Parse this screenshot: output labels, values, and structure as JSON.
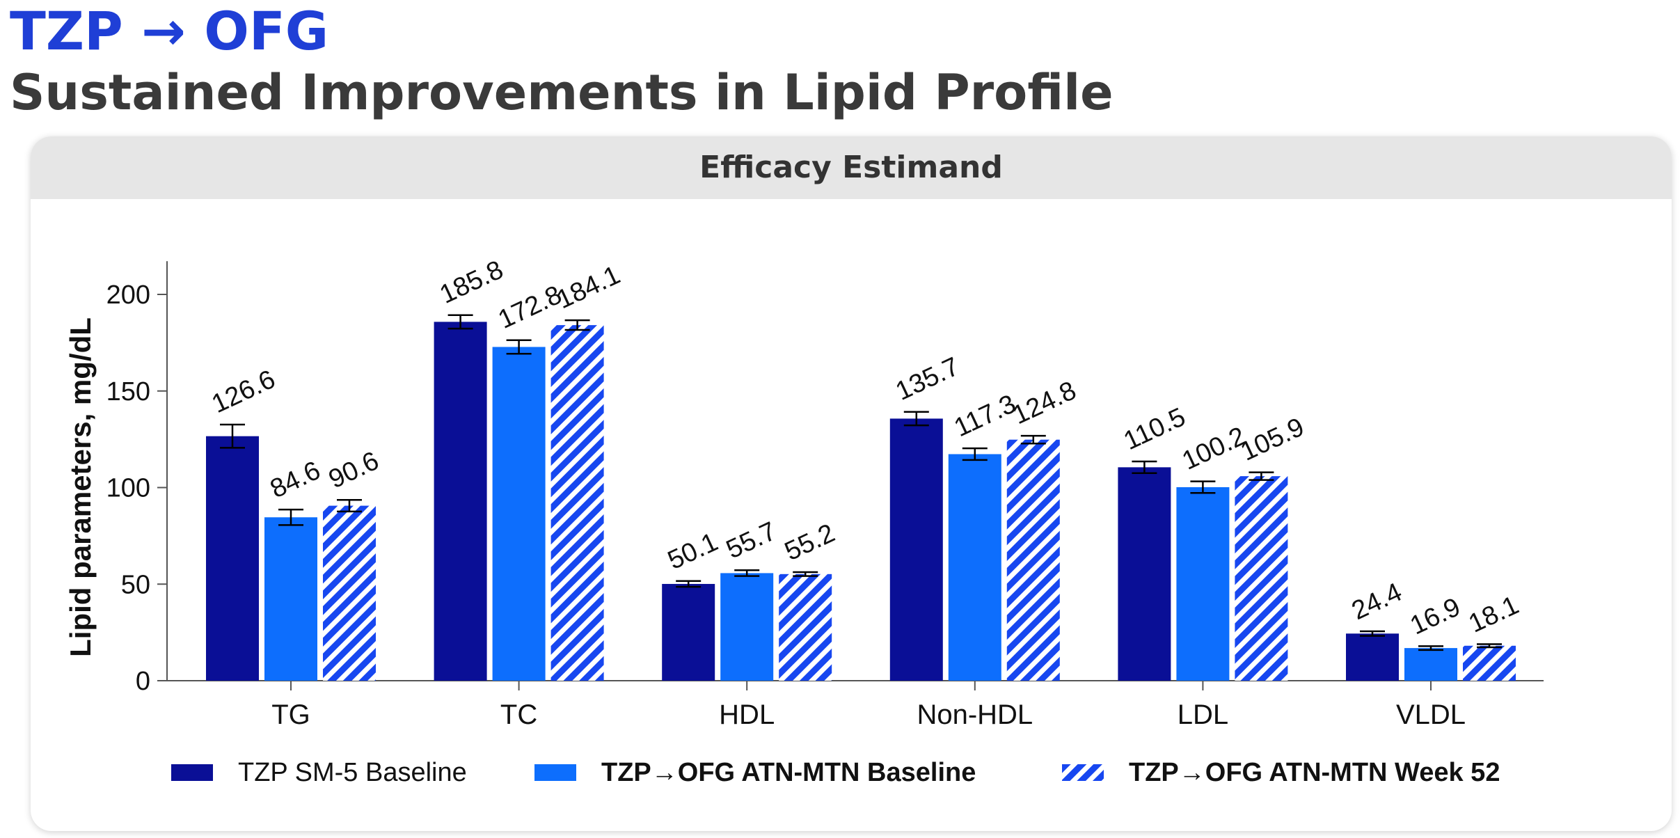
{
  "header": {
    "title_line1": "TZP → OFG",
    "title_line2": "Sustained Improvements in Lipid Profile",
    "panel_title": "Efficacy Estimand"
  },
  "colors": {
    "title_blue": "#1f3fd6",
    "dark_navy": "#0a0f96",
    "bright_blue": "#0d6efd",
    "hatch_blue": "#1747f0"
  },
  "chart_data": {
    "type": "bar",
    "ylabel": "Lipid parameters, mg/dL",
    "xlabel": "",
    "ylim": [
      0,
      210
    ],
    "yticks": [
      0,
      50,
      100,
      150,
      200
    ],
    "categories": [
      "TG",
      "TC",
      "HDL",
      "Non-HDL",
      "LDL",
      "VLDL"
    ],
    "series": [
      {
        "name": "TZP SM-5 Baseline",
        "style": "solid-dark",
        "values": [
          126.6,
          185.8,
          50.1,
          135.7,
          110.5,
          24.4
        ],
        "labels": [
          "126.6",
          "185.8",
          "50.1",
          "135.7",
          "110.5",
          "24.4"
        ],
        "err": [
          6,
          3.5,
          1.5,
          3.5,
          3,
          1.2
        ]
      },
      {
        "name": "TZP→OFG  ATN-MTN Baseline",
        "style": "solid-bright",
        "values": [
          84.6,
          172.8,
          55.7,
          117.3,
          100.2,
          16.9
        ],
        "labels": [
          "84.6",
          "172.8",
          "55.7",
          "117.3",
          "100.2",
          "16.9"
        ],
        "err": [
          4,
          3.5,
          1.5,
          3,
          3,
          1
        ]
      },
      {
        "name": "TZP→OFG  ATN-MTN Week 52",
        "style": "hatched",
        "values": [
          90.6,
          184.1,
          55.2,
          124.8,
          105.9,
          18.1
        ],
        "labels": [
          "90.6",
          "184.1",
          "55.2",
          "124.8",
          "105.9",
          "18.1"
        ],
        "err": [
          3,
          2.5,
          1,
          2,
          2,
          0.8
        ]
      }
    ],
    "legend_position": "bottom",
    "grid": false
  }
}
